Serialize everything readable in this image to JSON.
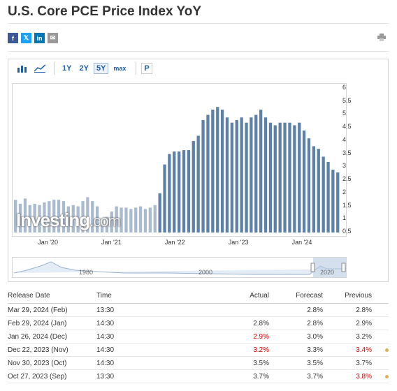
{
  "page": {
    "title": "U.S. Core PCE Price Index YoY"
  },
  "share": {
    "facebook": "f",
    "twitter": "𝕏",
    "linkedin": "in",
    "email": "✉"
  },
  "toolbar": {
    "ranges": [
      "1Y",
      "2Y",
      "5Y",
      "max"
    ],
    "active_range": "5Y",
    "p_label": "P"
  },
  "chart_data": {
    "type": "bar",
    "title": "",
    "x_tick_labels": [
      "Jan '20",
      "Jan '21",
      "Jan '22",
      "Jan '23",
      "Jan '24"
    ],
    "y_tick_labels": [
      "6",
      "5.5",
      "5",
      "4.5",
      "4",
      "3.5",
      "3",
      "2.5",
      "2",
      "1.5",
      "1",
      "0.5"
    ],
    "ylim": [
      0.5,
      6
    ],
    "values": [
      1.75,
      1.6,
      1.8,
      1.55,
      1.6,
      1.55,
      1.65,
      1.7,
      1.75,
      1.75,
      1.7,
      1.5,
      1.55,
      1.5,
      1.7,
      1.85,
      1.7,
      1.5,
      1.0,
      1.1,
      1.3,
      1.5,
      1.45,
      1.45,
      1.4,
      1.45,
      1.5,
      1.4,
      1.45,
      1.55,
      2.0,
      3.1,
      3.5,
      3.6,
      3.6,
      3.65,
      3.65,
      4.0,
      4.2,
      4.8,
      5.0,
      5.2,
      5.3,
      5.2,
      4.9,
      4.7,
      4.8,
      4.9,
      4.7,
      4.9,
      5.0,
      5.2,
      4.9,
      4.7,
      4.6,
      4.7,
      4.7,
      4.7,
      4.6,
      4.7,
      4.4,
      4.1,
      3.8,
      3.7,
      3.4,
      3.2,
      2.9,
      2.8
    ],
    "navigator_labels": [
      "1980",
      "2000",
      "2020"
    ],
    "watermark": "Investing",
    "watermark_suffix": ".com",
    "colors": {
      "bar": "#5e81aa",
      "bar_faded": "#aabbd0"
    }
  },
  "table": {
    "headers": {
      "date": "Release Date",
      "time": "Time",
      "actual": "Actual",
      "forecast": "Forecast",
      "previous": "Previous"
    },
    "rows": [
      {
        "date": "Mar 29, 2024 (Feb)",
        "time": "13:30",
        "actual": "",
        "actual_red": false,
        "forecast": "2.8%",
        "previous": "2.8%",
        "previous_red": false,
        "marker": false
      },
      {
        "date": "Feb 29, 2024 (Jan)",
        "time": "14:30",
        "actual": "2.8%",
        "actual_red": false,
        "forecast": "2.8%",
        "previous": "2.9%",
        "previous_red": false,
        "marker": false
      },
      {
        "date": "Jan 26, 2024 (Dec)",
        "time": "14:30",
        "actual": "2.9%",
        "actual_red": true,
        "forecast": "3.0%",
        "previous": "3.2%",
        "previous_red": false,
        "marker": false
      },
      {
        "date": "Dec 22, 2023 (Nov)",
        "time": "14:30",
        "actual": "3.2%",
        "actual_red": true,
        "forecast": "3.3%",
        "previous": "3.4%",
        "previous_red": true,
        "marker": true
      },
      {
        "date": "Nov 30, 2023 (Oct)",
        "time": "14:30",
        "actual": "3.5%",
        "actual_red": false,
        "forecast": "3.5%",
        "previous": "3.7%",
        "previous_red": false,
        "marker": false
      },
      {
        "date": "Oct 27, 2023 (Sep)",
        "time": "13:30",
        "actual": "3.7%",
        "actual_red": false,
        "forecast": "3.7%",
        "previous": "3.8%",
        "previous_red": true,
        "marker": true
      }
    ]
  }
}
